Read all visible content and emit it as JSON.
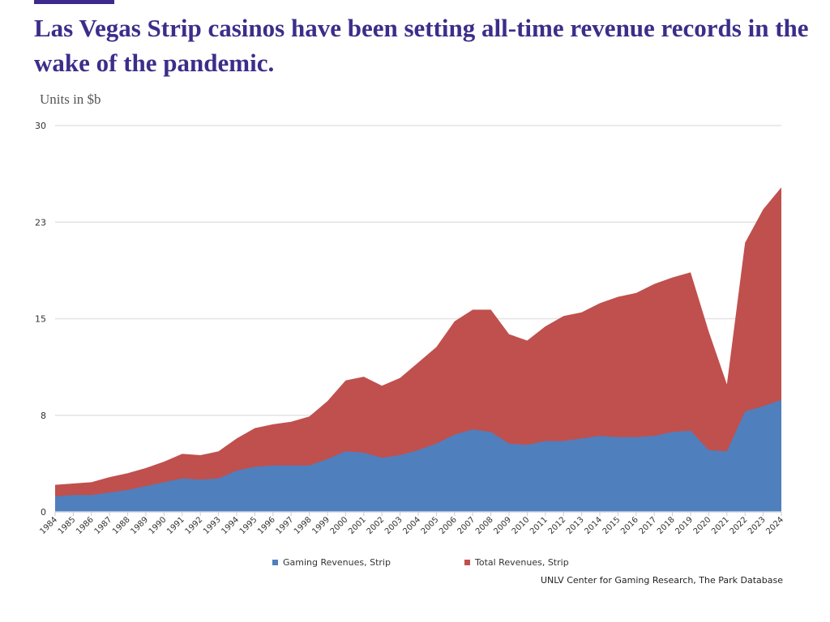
{
  "header": {
    "title": "Las Vegas Strip casinos have been setting all-time revenue records in the wake of the pandemic.",
    "units": "Units in $b"
  },
  "colors": {
    "accent": "#3d2a8c",
    "title": "#3b2e8a",
    "gaming": "#4f7fbd",
    "total": "#c0504d",
    "grid": "#e3e3e3"
  },
  "legend": {
    "gaming_label": "Gaming Revenues, Strip",
    "total_label": "Total Revenues, Strip"
  },
  "source": "UNLV Center for Gaming Research, The Park Database",
  "chart_data": {
    "type": "area",
    "title": "Las Vegas Strip casinos have been setting all-time revenue records in the wake of the pandemic.",
    "xlabel": "",
    "ylabel": "Units in $b",
    "ylim": [
      0,
      30
    ],
    "yticks": [
      0,
      7.5,
      15,
      22.5,
      30
    ],
    "ytick_labels": [
      "0",
      "8",
      "15",
      "23",
      "30"
    ],
    "grid": true,
    "legend_position": "bottom",
    "categories": [
      "1984",
      "1985",
      "1986",
      "1987",
      "1988",
      "1989",
      "1990",
      "1991",
      "1992",
      "1993",
      "1994",
      "1995",
      "1996",
      "1997",
      "1998",
      "1999",
      "2000",
      "2001",
      "2002",
      "2003",
      "2004",
      "2005",
      "2006",
      "2007",
      "2008",
      "2009",
      "2010",
      "2011",
      "2012",
      "2013",
      "2014",
      "2015",
      "2016",
      "2017",
      "2018",
      "2019",
      "2020",
      "2021",
      "2022",
      "2023",
      "2024"
    ],
    "series": [
      {
        "name": "Total Revenues, Strip",
        "color": "#c0504d",
        "values": [
          2.1,
          2.2,
          2.3,
          2.7,
          3.0,
          3.4,
          3.9,
          4.5,
          4.4,
          4.7,
          5.7,
          6.5,
          6.8,
          7.0,
          7.4,
          8.6,
          10.2,
          10.5,
          9.8,
          10.4,
          11.6,
          12.8,
          14.8,
          15.7,
          15.7,
          13.8,
          13.3,
          14.4,
          15.2,
          15.5,
          16.2,
          16.7,
          17.0,
          17.7,
          18.2,
          18.6,
          14.0,
          9.9,
          20.9,
          23.5,
          25.2
        ]
      },
      {
        "name": "Gaming Revenues, Strip",
        "color": "#4f7fbd",
        "values": [
          1.2,
          1.3,
          1.3,
          1.5,
          1.7,
          2.0,
          2.3,
          2.6,
          2.5,
          2.6,
          3.2,
          3.5,
          3.6,
          3.6,
          3.6,
          4.1,
          4.7,
          4.6,
          4.2,
          4.4,
          4.8,
          5.3,
          6.0,
          6.4,
          6.2,
          5.3,
          5.2,
          5.5,
          5.5,
          5.7,
          5.9,
          5.8,
          5.8,
          5.9,
          6.2,
          6.3,
          4.8,
          4.7,
          7.8,
          8.2,
          8.7
        ]
      }
    ]
  }
}
